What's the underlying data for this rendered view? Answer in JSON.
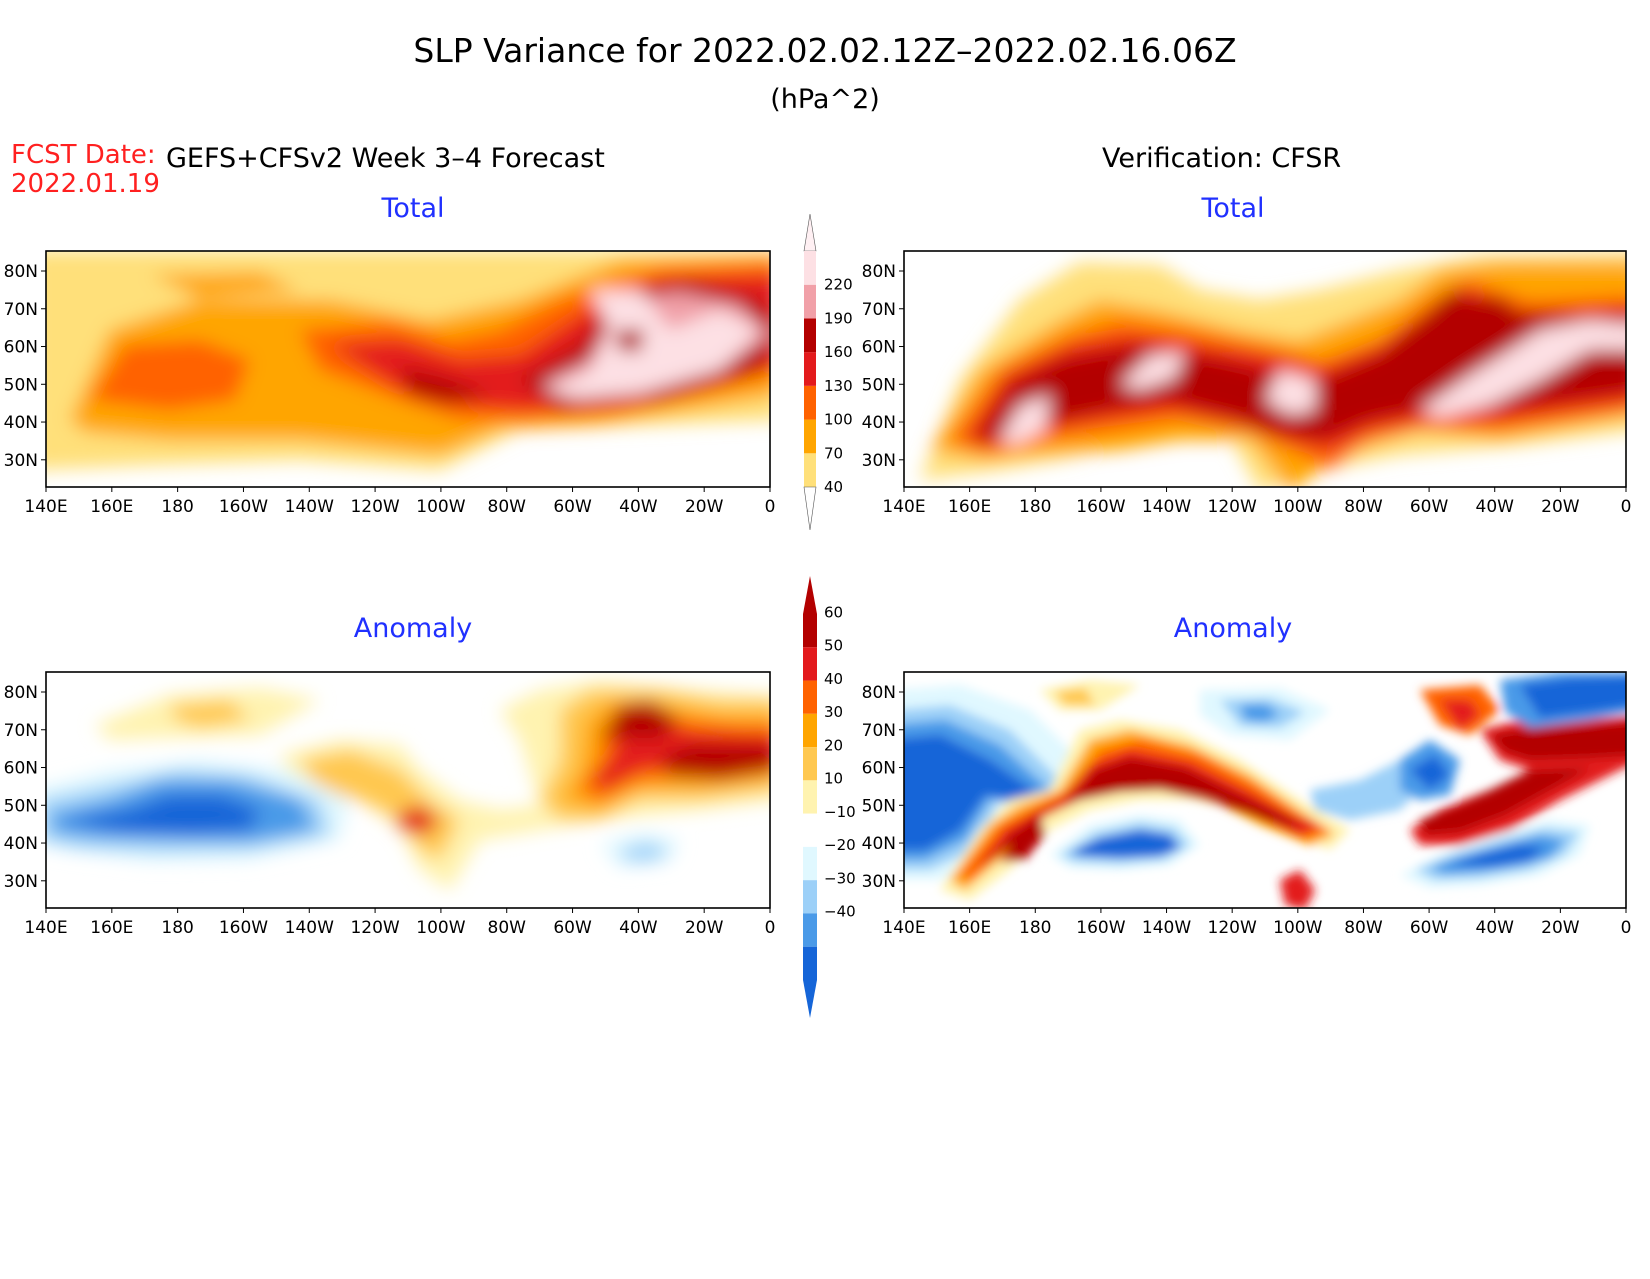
{
  "header": {
    "title": "SLP Variance for 2022.02.02.12Z–2022.02.16.06Z",
    "units": "(hPa^2)",
    "fcst_date_label": "FCST Date:",
    "fcst_date_value": "2022.01.19",
    "left_column_title": "GEFS+CFSv2 Week 3–4 Forecast",
    "right_column_title": "Verification: CFSR"
  },
  "panels": {
    "forecast_total_title": "Total",
    "verif_total_title": "Total",
    "forecast_anomaly_title": "Anomaly",
    "verif_anomaly_title": "Anomaly"
  },
  "axes": {
    "lon_labels": [
      "140E",
      "160E",
      "180",
      "160W",
      "140W",
      "120W",
      "100W",
      "80W",
      "60W",
      "40W",
      "20W",
      "0"
    ],
    "lat_labels": [
      "80N",
      "70N",
      "60N",
      "50N",
      "40N",
      "30N"
    ]
  },
  "colorbars": {
    "total": {
      "levels": [
        "40",
        "70",
        "100",
        "130",
        "160",
        "190",
        "220"
      ],
      "colors": [
        "#ffe07a",
        "#ffa500",
        "#ff6200",
        "#e31a1c",
        "#b30000",
        "#f1a0a8",
        "#fde0e4"
      ]
    },
    "anomaly": {
      "levels": [
        "60",
        "50",
        "40",
        "30",
        "20",
        "10",
        "−10",
        "−20",
        "−30",
        "−40"
      ],
      "colors": [
        "#b30000",
        "#e31a1c",
        "#ff6200",
        "#ffa500",
        "#ffc850",
        "#fff3b0",
        "#ffffff",
        "#e0f8ff",
        "#9cd0f8",
        "#4a9ae8",
        "#1565d8"
      ]
    }
  }
}
